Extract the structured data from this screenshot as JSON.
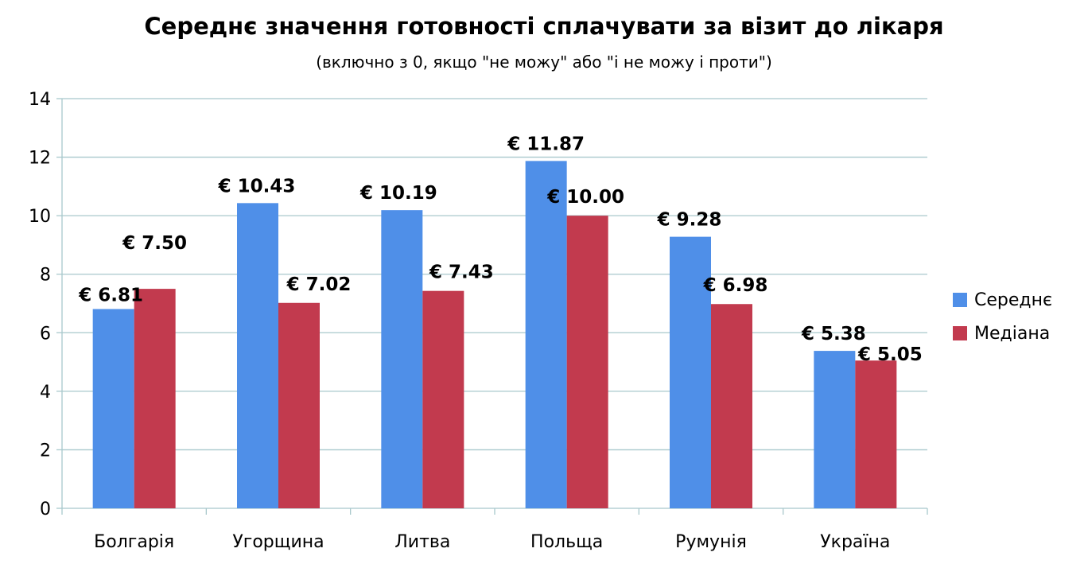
{
  "chart_data": {
    "type": "bar",
    "title": "Середнє значення готовності сплачувати за візит до лікаря",
    "subtitle": "(включно з 0, якщо \"не можу\" або \"і не можу і проти\")",
    "xlabel": "",
    "ylabel": "",
    "categories": [
      "Болгарія",
      "Угорщина",
      "Литва",
      "Польща",
      "Румунія",
      "Україна"
    ],
    "series": [
      {
        "name": "Середнє",
        "color": "#4f8fe8",
        "values": [
          6.81,
          10.43,
          10.19,
          11.87,
          9.28,
          5.38
        ],
        "labels": [
          "€ 6.81",
          "€ 10.43",
          "€ 10.19",
          "€ 11.87",
          "€ 9.28",
          "€ 5.38"
        ]
      },
      {
        "name": "Медіана",
        "color": "#c23a4e",
        "values": [
          7.5,
          7.02,
          7.43,
          10.0,
          6.98,
          5.05
        ],
        "labels": [
          "€ 7.50",
          "€ 7.02",
          "€ 7.43",
          "€ 10.00",
          "€ 6.98",
          "€ 5.05"
        ]
      }
    ],
    "ylim": [
      0,
      14
    ],
    "yticks": [
      0,
      2,
      4,
      6,
      8,
      10,
      12,
      14
    ],
    "ytick_labels": [
      "0",
      "2",
      "4",
      "6",
      "8",
      "10",
      "12",
      "14"
    ],
    "grid": true,
    "gridline_color": "#a8c8cc",
    "legend_position": "right"
  }
}
